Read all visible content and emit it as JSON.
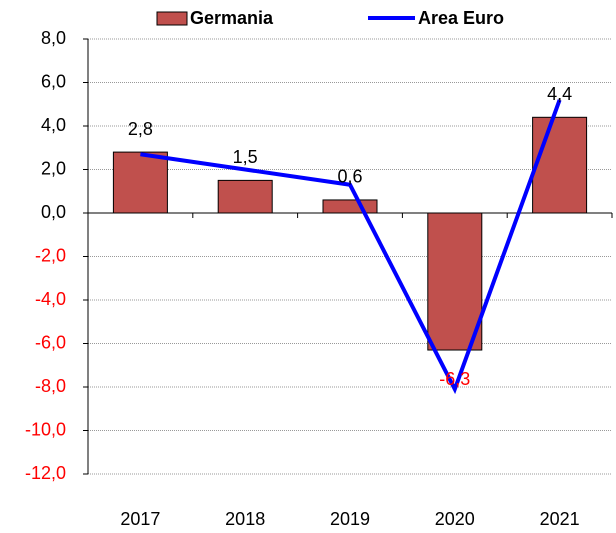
{
  "chart_data": {
    "type": "bar_line",
    "categories": [
      "2017",
      "2018",
      "2019",
      "2020",
      "2021"
    ],
    "series": [
      {
        "name": "Germania",
        "type": "bar",
        "color": "#c0504d",
        "values": [
          2.8,
          1.5,
          0.6,
          -6.3,
          4.4
        ],
        "value_labels": [
          "2,8",
          "1,5",
          "0,6",
          "-6,3",
          "4,4"
        ]
      },
      {
        "name": "Area Euro",
        "type": "line",
        "color": "#0000ff",
        "values": [
          2.7,
          2.0,
          1.3,
          -8.1,
          5.2
        ]
      }
    ],
    "ylim": [
      -12,
      8
    ],
    "yticks": [
      {
        "value": -12,
        "label": "-12,0"
      },
      {
        "value": -10,
        "label": "-10,0"
      },
      {
        "value": -8,
        "label": "-8,0"
      },
      {
        "value": -6,
        "label": "-6,0"
      },
      {
        "value": -4,
        "label": "-4,0"
      },
      {
        "value": -2,
        "label": "-2,0"
      },
      {
        "value": 0,
        "label": "0,0"
      },
      {
        "value": 2,
        "label": "2,0"
      },
      {
        "value": 4,
        "label": "4,0"
      },
      {
        "value": 6,
        "label": "6,0"
      },
      {
        "value": 8,
        "label": "8,0"
      }
    ],
    "grid": true,
    "legend": "top",
    "negative_color": "#ff0000"
  }
}
